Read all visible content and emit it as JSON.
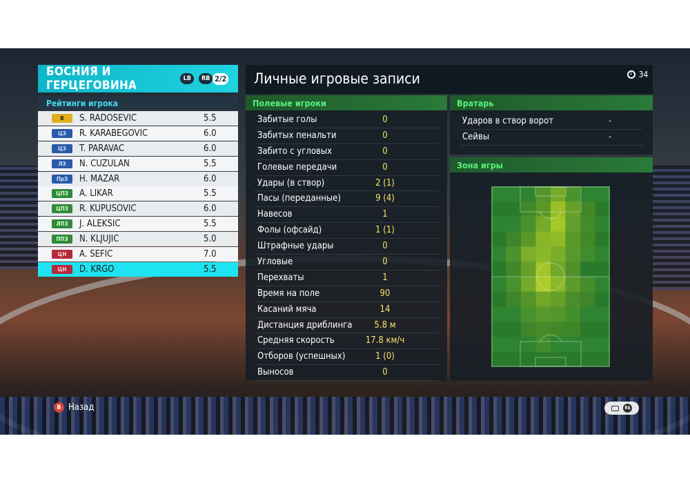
{
  "team": {
    "name": "БОСНИЯ И ГЕРЦЕГОВИНА",
    "chip_lb": "LB",
    "chip_rb": "RB",
    "page": "2/2"
  },
  "ratings": {
    "title": "Рейтинги игрока",
    "players": [
      {
        "pos": "В",
        "pos_color": "#e0b01c",
        "pos_text": "#3a2a00",
        "name": "S. RADOSEVIC",
        "rating": "5.5"
      },
      {
        "pos": "ЦЗ",
        "pos_color": "#2b5aa8",
        "pos_text": "#cfe4ff",
        "name": "R. KARABEGOVIC",
        "rating": "6.0"
      },
      {
        "pos": "ЦЗ",
        "pos_color": "#2b5aa8",
        "pos_text": "#cfe4ff",
        "name": "T. PARAVAC",
        "rating": "6.0"
      },
      {
        "pos": "ЛЗ",
        "pos_color": "#2b5aa8",
        "pos_text": "#cfe4ff",
        "name": "N. CUZULAN",
        "rating": "5.5"
      },
      {
        "pos": "ПрЗ",
        "pos_color": "#2b5aa8",
        "pos_text": "#cfe4ff",
        "name": "H. MAZAR",
        "rating": "6.0"
      },
      {
        "pos": "ЦПЗ",
        "pos_color": "#2f8a3a",
        "pos_text": "#d8ffd8",
        "name": "A. LIKAR",
        "rating": "5.5"
      },
      {
        "pos": "ЦПЗ",
        "pos_color": "#2f8a3a",
        "pos_text": "#d8ffd8",
        "name": "R. KUPUSOVIC",
        "rating": "6.0"
      },
      {
        "pos": "ЛПЗ",
        "pos_color": "#2f8a3a",
        "pos_text": "#d8ffd8",
        "name": "J. ALEKSIC",
        "rating": "5.5"
      },
      {
        "pos": "ППЗ",
        "pos_color": "#2f8a3a",
        "pos_text": "#d8ffd8",
        "name": "N. KLJUJIC",
        "rating": "5.0"
      },
      {
        "pos": "ЦН",
        "pos_color": "#b42a3a",
        "pos_text": "#ffd8dc",
        "name": "A. SEFIC",
        "rating": "7.0"
      },
      {
        "pos": "ЦН",
        "pos_color": "#b42a3a",
        "pos_text": "#ffd8dc",
        "name": "D. KRGO",
        "rating": "5.5"
      }
    ],
    "selected_index": 10
  },
  "records": {
    "title": "Личные игровые записи",
    "timer": "34",
    "field_title": "Полевые игроки",
    "stats": [
      {
        "label": "Забитые голы",
        "value": "0"
      },
      {
        "label": "Забитых пенальти",
        "value": "0"
      },
      {
        "label": "Забито с угловых",
        "value": "0"
      },
      {
        "label": "Голевые передачи",
        "value": "0"
      },
      {
        "label": "Удары (в створ)",
        "value": "2 (1)"
      },
      {
        "label": "Пасы (переданные)",
        "value": "9 (4)"
      },
      {
        "label": "Навесов",
        "value": "1"
      },
      {
        "label": "Фолы (офсайд)",
        "value": "1 (1)"
      },
      {
        "label": "Штрафные удары",
        "value": "0"
      },
      {
        "label": "Угловые",
        "value": "0"
      },
      {
        "label": "Перехваты",
        "value": "1"
      },
      {
        "label": "Время на поле",
        "value": "90"
      },
      {
        "label": "Касаний мяча",
        "value": "14"
      },
      {
        "label": "Дистанция дриблинга",
        "value": "5.8 м"
      },
      {
        "label": "Средняя скорость",
        "value": "17.8 км/ч"
      },
      {
        "label": "Отборов (успешных)",
        "value": "1 (0)"
      },
      {
        "label": "Выносов",
        "value": "0"
      }
    ],
    "gk_title": "Вратарь",
    "gk_stats": [
      {
        "label": "Ударов в створ ворот",
        "value": "-"
      },
      {
        "label": "Сейвы",
        "value": "-"
      }
    ],
    "zone_title": "Зона игры"
  },
  "hints": {
    "back_button": "B",
    "back_label": "Назад",
    "rs_label": "R$"
  },
  "colors": {
    "accent": "#1fd3df",
    "section_green": "#58f07a",
    "value_yellow": "#f6e26a",
    "selected_row": "#1fe3f0"
  },
  "heatmap": {
    "cols": 8,
    "rows": 12,
    "intensity": [
      [
        0,
        0,
        0,
        0.25,
        0.55,
        0.2,
        0,
        0
      ],
      [
        0,
        0,
        0.1,
        0.35,
        0.8,
        0.45,
        0.1,
        0
      ],
      [
        0,
        0,
        0.15,
        0.55,
        0.85,
        0.4,
        0.05,
        0
      ],
      [
        0,
        0.05,
        0.35,
        0.7,
        0.75,
        0.35,
        0.1,
        0
      ],
      [
        0,
        0.2,
        0.6,
        0.7,
        0.6,
        0.3,
        0.05,
        0
      ],
      [
        0,
        0.1,
        0.45,
        0.85,
        0.55,
        0.25,
        0,
        0
      ],
      [
        0,
        0.15,
        0.55,
        0.9,
        0.7,
        0.35,
        0.1,
        0
      ],
      [
        0,
        0.05,
        0.3,
        0.55,
        0.45,
        0.2,
        0.05,
        0
      ],
      [
        0,
        0,
        0.15,
        0.3,
        0.25,
        0.1,
        0,
        0
      ],
      [
        0,
        0,
        0.05,
        0.15,
        0.1,
        0.05,
        0,
        0
      ],
      [
        0,
        0,
        0,
        0.05,
        0,
        0,
        0,
        0
      ],
      [
        0,
        0,
        0,
        0,
        0,
        0,
        0,
        0
      ]
    ]
  }
}
